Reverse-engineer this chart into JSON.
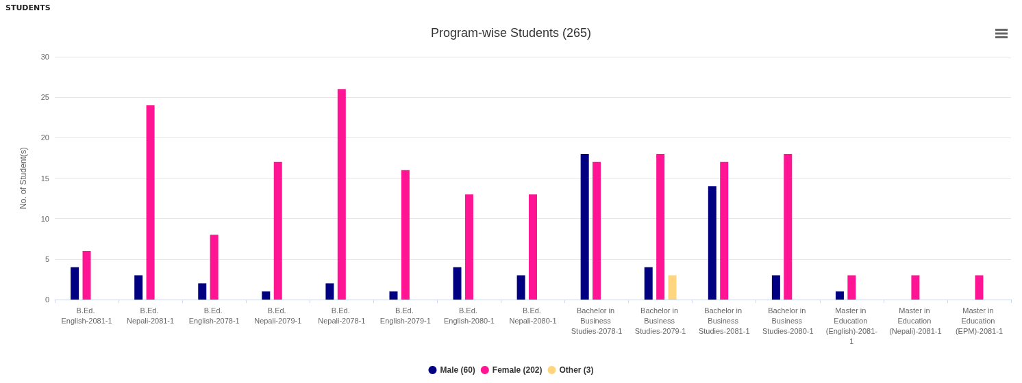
{
  "chart_data": {
    "type": "bar",
    "title": "Program-wise Students (265)",
    "ylabel": "No. of Student(s)",
    "annotations": [
      "STUDENTS"
    ],
    "categories": [
      "B.Ed. English-2081-1",
      "B.Ed. Nepali-2081-1",
      "B.Ed. English-2078-1",
      "B.Ed. Nepali-2079-1",
      "B.Ed. Nepali-2078-1",
      "B.Ed. English-2079-1",
      "B.Ed. English-2080-1",
      "B.Ed. Nepali-2080-1",
      "Bachelor in Business Studies-2078-1",
      "Bachelor in Business Studies-2079-1",
      "Bachelor in Business Studies-2081-1",
      "Bachelor in Business Studies-2080-1",
      "Master in Education (English)-2081-1",
      "Master in Education (Nepali)-2081-1",
      "Master in Education (EPM)-2081-1"
    ],
    "series": [
      {
        "name": "Male (60)",
        "color": "#000080",
        "values": [
          4,
          3,
          2,
          1,
          2,
          1,
          4,
          3,
          18,
          4,
          14,
          3,
          1,
          null,
          null
        ]
      },
      {
        "name": "Female (202)",
        "color": "#ff1493",
        "values": [
          6,
          24,
          8,
          17,
          26,
          16,
          13,
          13,
          17,
          18,
          17,
          18,
          3,
          3,
          3
        ]
      },
      {
        "name": "Other (3)",
        "color": "#ffd580",
        "values": [
          null,
          null,
          null,
          null,
          null,
          null,
          null,
          null,
          null,
          3,
          null,
          null,
          null,
          null,
          null
        ]
      }
    ],
    "ylim": [
      0,
      30
    ],
    "yticks": [
      0,
      5,
      10,
      15,
      20,
      25,
      30
    ],
    "grid": "y",
    "legend": "bottom"
  }
}
